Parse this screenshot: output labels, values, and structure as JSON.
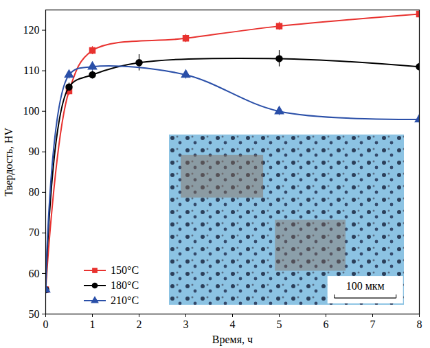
{
  "chart_data": {
    "type": "line",
    "x_label": "Время, ч",
    "y_label": "Твердость, HV",
    "xlim": [
      0,
      8
    ],
    "xticks": [
      0,
      1,
      2,
      3,
      4,
      5,
      6,
      7,
      8
    ],
    "ylim": [
      50,
      125
    ],
    "yticks": [
      50,
      60,
      70,
      80,
      90,
      100,
      110,
      120
    ],
    "grid": false,
    "legend": "lower left",
    "series": [
      {
        "name": "150°C",
        "color": "#e8322f",
        "marker": "square",
        "line_style": "solid",
        "x": [
          0,
          0.5,
          1,
          3,
          5,
          8
        ],
        "values": [
          56,
          105,
          115,
          118,
          121,
          124
        ],
        "errors": [
          0,
          1,
          1,
          1,
          1,
          1
        ]
      },
      {
        "name": "180°C",
        "color": "#000000",
        "marker": "circle",
        "line_style": "solid",
        "x": [
          0,
          0.5,
          1,
          2,
          5,
          8
        ],
        "values": [
          56,
          106,
          109,
          112,
          113,
          111
        ],
        "errors": [
          0,
          1,
          1,
          2,
          2,
          1
        ]
      },
      {
        "name": "210°C",
        "color": "#2a4fa8",
        "marker": "triangle",
        "line_style": "solid",
        "x": [
          0,
          0.5,
          1,
          3,
          5,
          8
        ],
        "values": [
          56,
          109,
          111,
          109,
          100,
          98
        ],
        "errors": [
          0,
          1,
          1,
          1,
          1,
          1
        ]
      }
    ],
    "annotations": [
      {
        "text": "100 мкм"
      }
    ]
  }
}
